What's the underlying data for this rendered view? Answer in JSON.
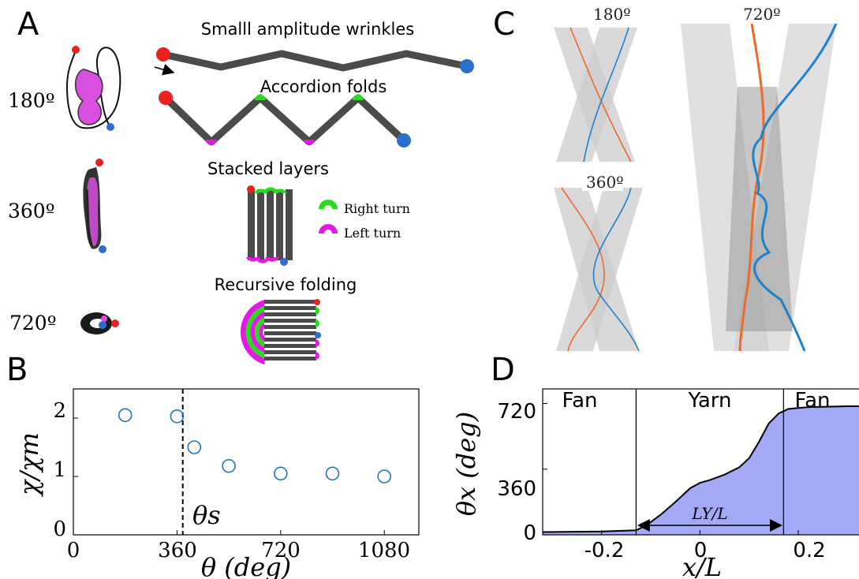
{
  "panels": {
    "a": "A",
    "b": "B",
    "c": "C",
    "d": "D"
  },
  "panel_a": {
    "angles": [
      "180º",
      "360º",
      "720º"
    ],
    "captions": {
      "wrinkles": "Smalll amplitude wrinkles",
      "accordion": "Accordion folds",
      "stacked": "Stacked layers",
      "recursive": "Recursive folding"
    },
    "legend": {
      "right": "Right turn",
      "left": "Left turn"
    },
    "colors": {
      "right": "#2bd91f",
      "left": "#e21ae2",
      "start": "#e8231f",
      "end": "#2d6fcf",
      "body": "#4b4b4b",
      "blob": "#d94fe0"
    }
  },
  "panel_c": {
    "labels": [
      "180º",
      "720º",
      "360º"
    ],
    "colors": {
      "orange": "#ee6a2c",
      "blue": "#1f82cc"
    }
  },
  "chart_b": {
    "type": "scatter",
    "x": [
      180,
      360,
      420,
      540,
      720,
      900,
      1080
    ],
    "y": [
      2.05,
      2.03,
      1.5,
      1.18,
      1.05,
      1.05,
      1.0
    ],
    "xlim": [
      0,
      1200
    ],
    "ylim": [
      0,
      2.5
    ],
    "xticks": [
      "0",
      "360",
      "720",
      "1080"
    ],
    "yticks": [
      "0",
      "1",
      "2"
    ],
    "xlabel": "θ (deg)",
    "ylabel": "χ/χm",
    "vline": 380,
    "vline_label": "θs",
    "marker_color": "#1f77b4"
  },
  "chart_d": {
    "type": "area",
    "x": [
      -0.32,
      -0.2,
      -0.13,
      -0.11,
      -0.08,
      -0.05,
      -0.02,
      0.0,
      0.02,
      0.05,
      0.08,
      0.1,
      0.12,
      0.14,
      0.16,
      0.18,
      0.22,
      0.3,
      0.33
    ],
    "y": [
      15,
      18,
      25,
      50,
      110,
      180,
      255,
      285,
      300,
      330,
      370,
      420,
      510,
      610,
      665,
      690,
      700,
      705,
      705
    ],
    "xlim": [
      -0.32,
      0.33
    ],
    "ylim": [
      0,
      800
    ],
    "xticks": [
      "-0.2",
      "0",
      "0.2"
    ],
    "yticks": [
      "0",
      "360",
      "720"
    ],
    "xlabel": "x/L",
    "ylabel": "θx (deg)",
    "regions": [
      "Fan",
      "Yarn",
      "Fan"
    ],
    "boundaries": [
      -0.13,
      0.17
    ],
    "arrow_label": "LY/L",
    "fill_color": "#a4a9f5"
  }
}
